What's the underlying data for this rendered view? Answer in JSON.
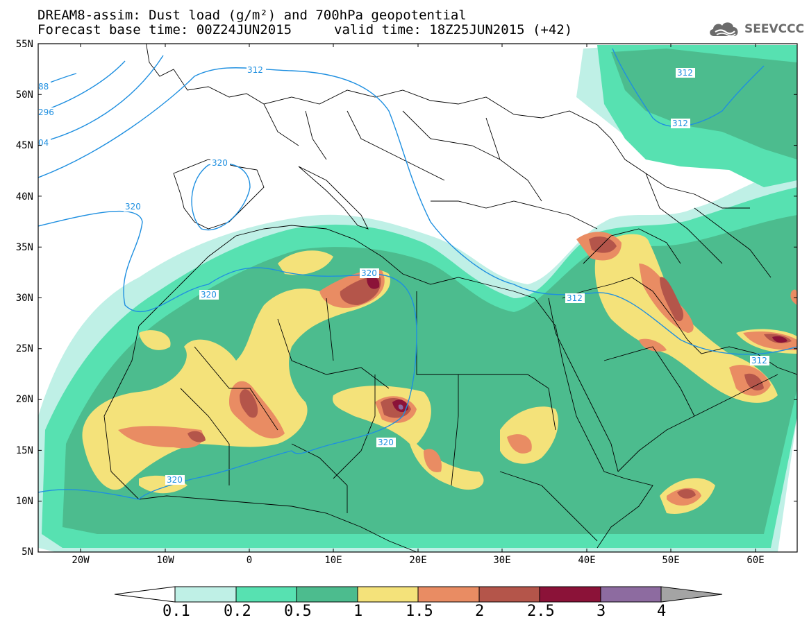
{
  "header": {
    "title_line1": "DREAM8-assim: Dust load (g/m²) and 700hPa geopotential",
    "title_line2": "Forecast base time: 00Z24JUN2015",
    "valid_time": "valid time: 18Z25JUN2015 (+42)",
    "logo_text": "SEEVCCC",
    "logo_icon": "cloud-logo-icon"
  },
  "axes": {
    "lat_labels": [
      "55N",
      "50N",
      "45N",
      "40N",
      "35N",
      "30N",
      "25N",
      "20N",
      "15N",
      "10N",
      "5N"
    ],
    "lon_labels": [
      "20W",
      "10W",
      "0",
      "10E",
      "20E",
      "30E",
      "40E",
      "50E",
      "60E"
    ]
  },
  "map": {
    "extent": {
      "lon": [
        -25,
        65
      ],
      "lat": [
        5,
        55
      ]
    },
    "contour_labels": [
      "88",
      "296",
      "04",
      "312",
      "320",
      "320",
      "320",
      "320",
      "320",
      "320",
      "312",
      "312",
      "312",
      "312"
    ]
  },
  "colorbar": {
    "labels": [
      "0.1",
      "0.2",
      "0.5",
      "1",
      "1.5",
      "2",
      "2.5",
      "3",
      "4"
    ],
    "colors": [
      "#ffffff",
      "#bff0e6",
      "#57e1b1",
      "#4cbc8e",
      "#f4e27a",
      "#e98c63",
      "#b4554a",
      "#8b1238",
      "#8d6ba0",
      "#a4a4a4"
    ]
  },
  "colors": {
    "contour": "#1e8fe0",
    "border": "#000000",
    "frame": "#000000"
  }
}
